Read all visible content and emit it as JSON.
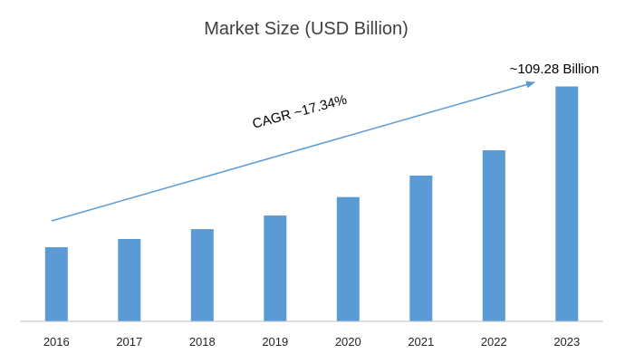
{
  "chart_data": {
    "type": "bar",
    "title": "Market Size (USD Billion)",
    "xlabel": "",
    "ylabel": "",
    "categories": [
      "2016",
      "2017",
      "2018",
      "2019",
      "2020",
      "2021",
      "2022",
      "2023"
    ],
    "values": [
      34.5,
      38.3,
      42.9,
      49.2,
      57.8,
      67.8,
      79.6,
      109.28
    ],
    "ylim": [
      0,
      120
    ],
    "grid": false,
    "legend": "none",
    "annotations": {
      "cagr_label": "CAGR ~17.34%",
      "final_value_label": "~109.28 Billion"
    }
  },
  "colors": {
    "bar": "#5B9BD5",
    "trend_arrow": "#5B9BD5",
    "axis": "#BFBFBF",
    "title": "#404040",
    "tick": "#262626",
    "annotation": "#000000"
  }
}
